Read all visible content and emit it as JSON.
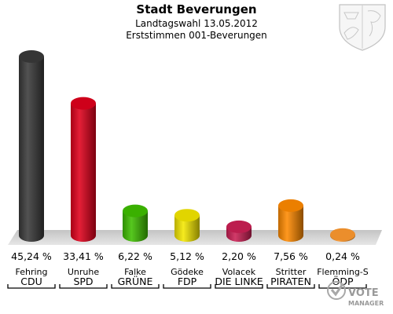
{
  "header": {
    "title": "Stadt Beverungen",
    "subtitle": "Landtagswahl 13.05.2012",
    "subtitle2": "Erststimmen 001-Beverungen"
  },
  "watermark": {
    "line1": "VOTE",
    "line2": "MANAGER"
  },
  "logo": {
    "icon": "coat-of-arms-icon"
  },
  "chart_data": {
    "type": "bar",
    "title": "Stadt Beverungen",
    "categories": [
      "CDU",
      "SPD",
      "GRÜNE",
      "FDP",
      "DIE LINKE",
      "PIRATEN",
      "ÖDP"
    ],
    "candidates": [
      "Fehring",
      "Unruhe",
      "Falke",
      "Gödeke",
      "Volacek",
      "Stritter",
      "Flemming-S"
    ],
    "values": [
      45.24,
      33.41,
      6.22,
      5.12,
      2.2,
      7.56,
      0.24
    ],
    "value_labels": [
      "45,24 %",
      "33,41 %",
      "6,22 %",
      "5,12 %",
      "2,20 %",
      "7,56 %",
      "0,24 %"
    ],
    "colors": [
      "#3a3a3a",
      "#e0001c",
      "#3fbf00",
      "#f5e800",
      "#cc1f55",
      "#ff8a00",
      "#ff9a30"
    ],
    "ylim": [
      0,
      45.24
    ],
    "grid": false,
    "legend": "none"
  }
}
